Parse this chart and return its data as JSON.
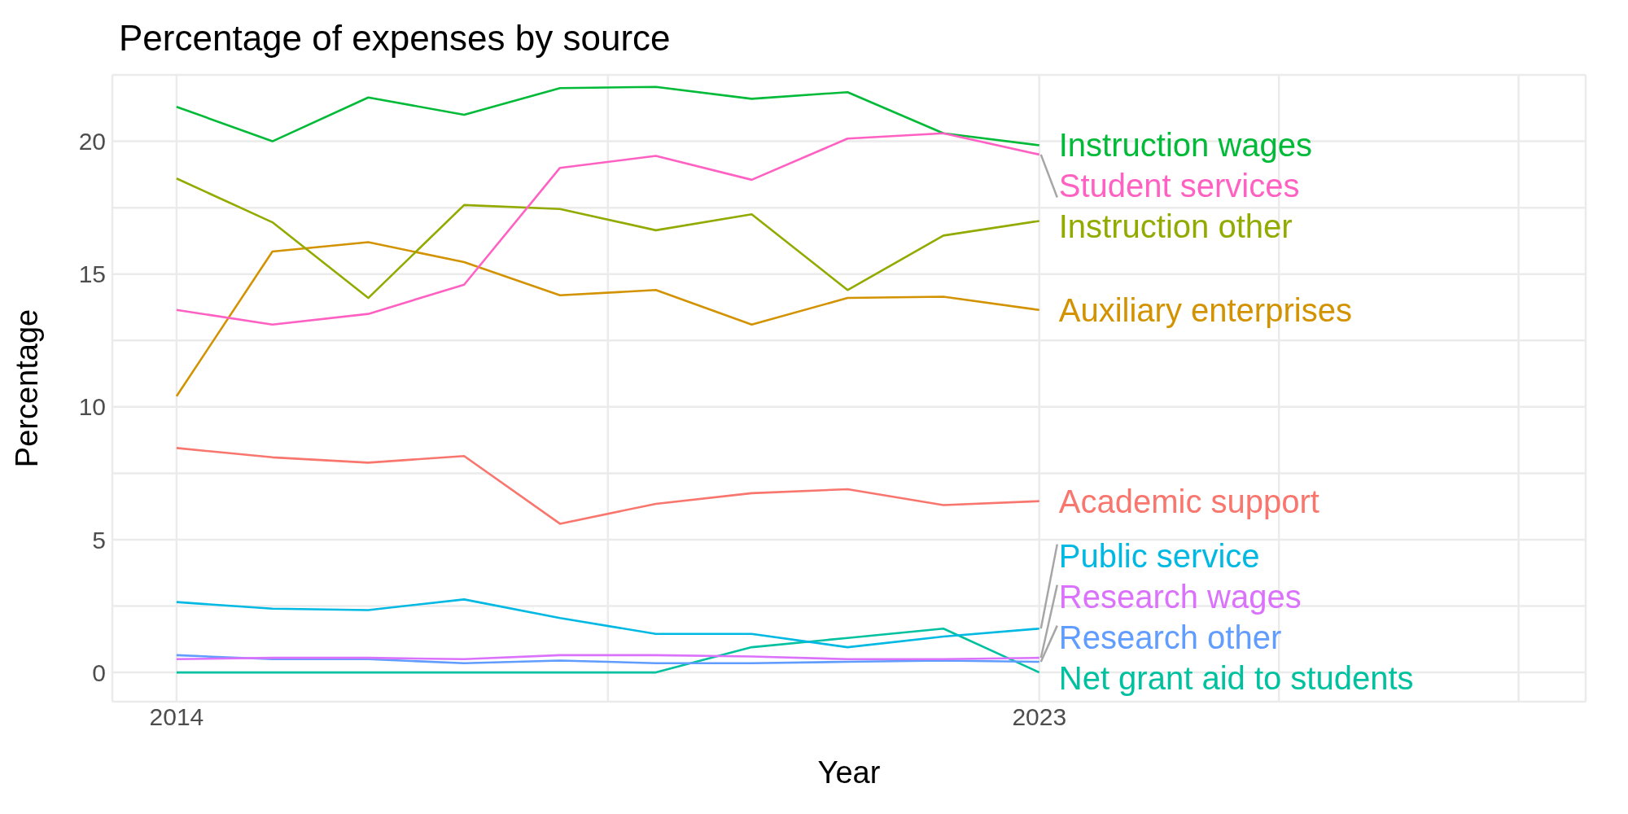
{
  "chart_data": {
    "type": "line",
    "title": "Percentage of expenses by source",
    "xlabel": "Year",
    "ylabel": "Percentage",
    "x": [
      2014,
      2015,
      2016,
      2017,
      2018,
      2019,
      2020,
      2021,
      2022,
      2023
    ],
    "xlim": [
      2013.33,
      2028.7
    ],
    "xticks": [
      2014,
      {
        "value": 2018.5,
        "label": null
      },
      2023,
      {
        "value": 2025.5,
        "label": null
      },
      {
        "value": 2028,
        "label": null
      }
    ],
    "ylim": [
      -1.1,
      22.5
    ],
    "yticks": [
      0,
      {
        "value": 2.5,
        "label": null
      },
      5,
      {
        "value": 7.5,
        "label": null
      },
      10,
      {
        "value": 12.5,
        "label": null
      },
      15,
      {
        "value": 17.5,
        "label": null
      },
      20,
      {
        "value": 22.5,
        "label": null
      }
    ],
    "grid": true,
    "series": [
      {
        "name": "Academic support",
        "color": "#f8766d",
        "values": [
          8.45,
          8.1,
          7.9,
          8.15,
          5.6,
          6.35,
          6.75,
          6.9,
          6.3,
          6.45
        ]
      },
      {
        "name": "Auxiliary enterprises",
        "color": "#d39200",
        "values": [
          10.4,
          15.85,
          16.2,
          15.45,
          14.2,
          14.4,
          13.1,
          14.1,
          14.15,
          13.65
        ]
      },
      {
        "name": "Instruction other",
        "color": "#93aa00",
        "values": [
          18.6,
          16.95,
          14.1,
          17.6,
          17.45,
          16.65,
          17.25,
          14.4,
          16.45,
          17.0
        ]
      },
      {
        "name": "Instruction wages",
        "color": "#00ba38",
        "values": [
          21.3,
          20.0,
          21.65,
          21.0,
          22.0,
          22.05,
          21.6,
          21.85,
          20.3,
          19.85
        ]
      },
      {
        "name": "Net grant aid to students",
        "color": "#00c19f",
        "values": [
          0,
          0,
          0,
          0,
          0,
          0,
          0.95,
          1.3,
          1.65,
          0
        ]
      },
      {
        "name": "Public service",
        "color": "#00b9e3",
        "values": [
          2.65,
          2.4,
          2.35,
          2.75,
          2.05,
          1.45,
          1.45,
          0.95,
          1.35,
          1.65
        ]
      },
      {
        "name": "Research other",
        "color": "#619cff",
        "values": [
          0.65,
          0.5,
          0.5,
          0.35,
          0.45,
          0.35,
          0.35,
          0.4,
          0.45,
          0.4
        ]
      },
      {
        "name": "Research wages",
        "color": "#db72fb",
        "values": [
          0.5,
          0.55,
          0.55,
          0.5,
          0.65,
          0.65,
          0.6,
          0.5,
          0.5,
          0.55
        ]
      },
      {
        "name": "Student services",
        "color": "#ff61c3",
        "values": [
          13.65,
          13.1,
          13.5,
          14.6,
          19.0,
          19.45,
          18.55,
          20.1,
          20.3,
          19.5
        ]
      }
    ]
  }
}
